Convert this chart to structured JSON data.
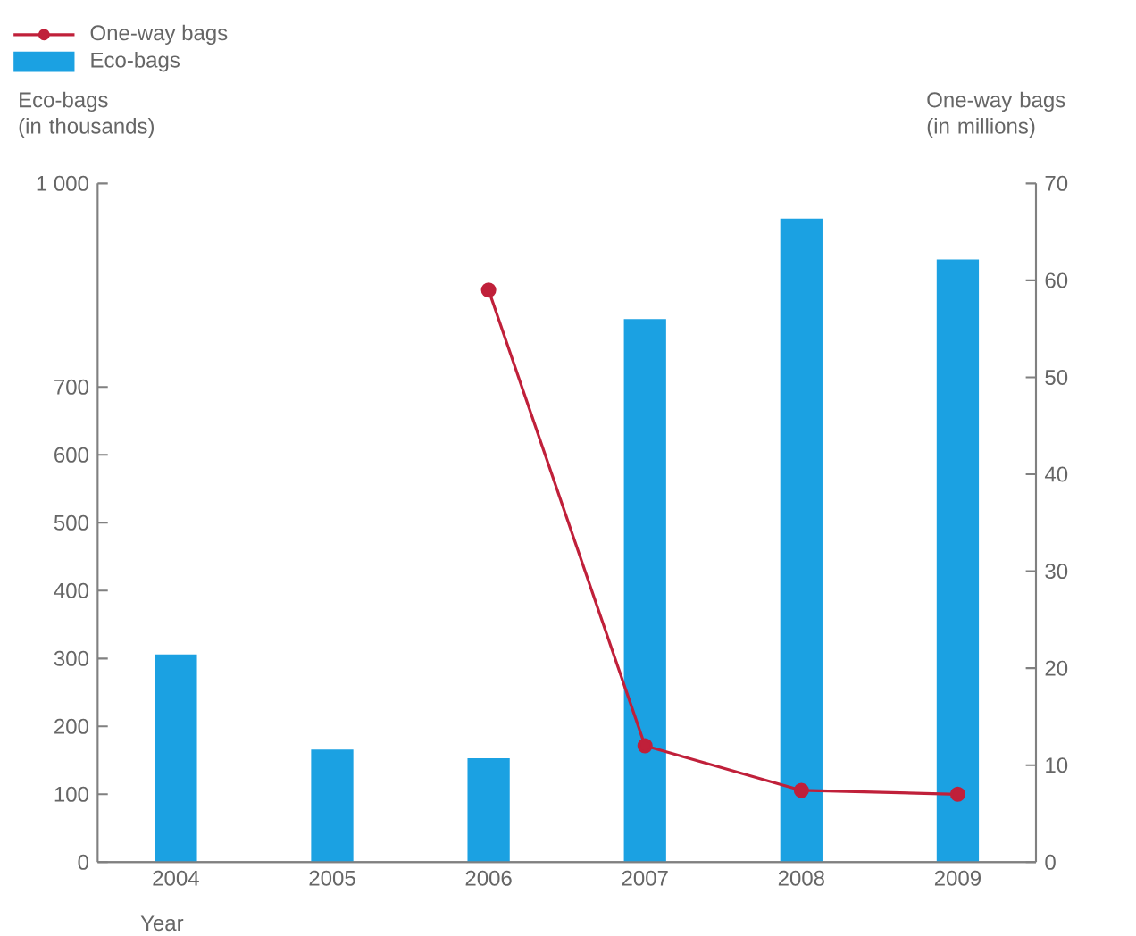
{
  "chart_data": {
    "type": "bar",
    "xlabel": "Year",
    "ylabel": "Eco-bags\n(in thousands)",
    "y2label": "One-way bags\n(in millions)",
    "categories": [
      "2004",
      "2005",
      "2006",
      "2007",
      "2008",
      "2009"
    ],
    "series": [
      {
        "name": "One-way bags",
        "type": "line",
        "axis": "y2",
        "color": "#c0203a",
        "marker": "circle",
        "values": [
          null,
          null,
          59,
          12,
          7.4,
          7
        ]
      },
      {
        "name": "Eco-bags",
        "color": "#1ba1e2",
        "values": [
          306,
          166,
          153,
          800,
          948,
          888
        ]
      }
    ],
    "ylim": [
      0,
      1000
    ],
    "yticks": [
      0,
      100,
      200,
      300,
      400,
      500,
      600,
      700,
      {
        "value": 1000,
        "label": "1 000"
      }
    ],
    "y2lim": [
      0,
      70
    ],
    "y2ticks": [
      0,
      10,
      20,
      30,
      40,
      50,
      60,
      70
    ],
    "grid": false,
    "legend": "top left"
  }
}
